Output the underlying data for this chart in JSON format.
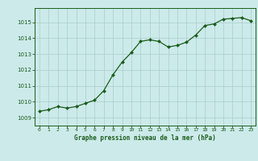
{
  "x": [
    0,
    1,
    2,
    3,
    4,
    5,
    6,
    7,
    8,
    9,
    10,
    11,
    12,
    13,
    14,
    15,
    16,
    17,
    18,
    19,
    20,
    21,
    22,
    23
  ],
  "y": [
    1009.4,
    1009.5,
    1009.7,
    1009.6,
    1009.7,
    1009.9,
    1010.1,
    1010.7,
    1011.7,
    1012.5,
    1013.1,
    1013.8,
    1013.9,
    1013.8,
    1013.45,
    1013.55,
    1013.75,
    1014.2,
    1014.8,
    1014.9,
    1015.2,
    1015.25,
    1015.3,
    1015.1
  ],
  "line_color": "#1a5c1a",
  "marker_color": "#1a5c1a",
  "bg_color": "#cceaea",
  "grid_color": "#aacccc",
  "xlabel": "Graphe pression niveau de la mer (hPa)",
  "xlabel_color": "#1a5c1a",
  "tick_color": "#1a5c1a",
  "yticks": [
    1009,
    1010,
    1011,
    1012,
    1013,
    1014,
    1015
  ],
  "ylim": [
    1008.5,
    1015.9
  ],
  "xlim": [
    -0.5,
    23.5
  ],
  "xtick_labels": [
    "0",
    "1",
    "2",
    "3",
    "4",
    "5",
    "6",
    "7",
    "8",
    "9",
    "10",
    "11",
    "12",
    "13",
    "14",
    "15",
    "16",
    "17",
    "18",
    "19",
    "20",
    "21",
    "22",
    "23"
  ]
}
